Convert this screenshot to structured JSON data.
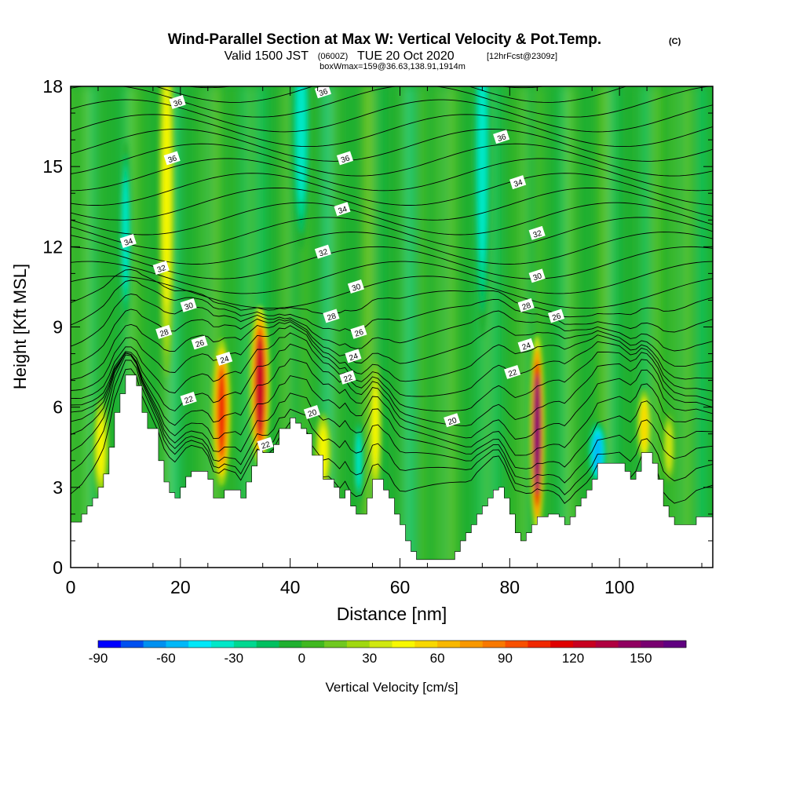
{
  "chart_data": {
    "type": "heatmap",
    "title": "Wind-Parallel Section at Max W: Vertical Velocity & Pot.Temp.",
    "title_mark": "(C)",
    "subtitle_parts": {
      "valid": "Valid 1500 JST",
      "utc": "(0600Z)",
      "date": "TUE 20 Oct 2020",
      "fcst": "[12hrFcst@2309z]"
    },
    "subtitle2": "boxWmax=159@36.63,138.91,1914m",
    "xlabel": "Distance [nm]",
    "ylabel": "Height [Kft MSL]",
    "xlim": [
      0,
      117
    ],
    "ylim": [
      0,
      18
    ],
    "x_ticks": [
      "0",
      "20",
      "40",
      "60",
      "80",
      "100"
    ],
    "y_ticks": [
      "0",
      "3",
      "6",
      "9",
      "12",
      "15",
      "18"
    ],
    "colorbar": {
      "label": "Vertical Velocity [cm/s]",
      "tick_labels": [
        "-90",
        "-60",
        "-30",
        "0",
        "30",
        "60",
        "90",
        "120",
        "150"
      ],
      "colors": [
        "#0000ff",
        "#0050f0",
        "#0090f0",
        "#00b8f8",
        "#00e8f8",
        "#00e8c8",
        "#00d890",
        "#00c060",
        "#20b030",
        "#40b820",
        "#70c820",
        "#a0d810",
        "#d0e810",
        "#f8f800",
        "#f8d800",
        "#f8b800",
        "#f89800",
        "#f87800",
        "#f85000",
        "#f02800",
        "#e00000",
        "#c80020",
        "#b00040",
        "#900060",
        "#780070",
        "#600080"
      ]
    },
    "terrain_profile": {
      "x_nm": [
        0,
        2,
        3,
        4,
        5,
        6,
        7,
        8,
        9,
        10,
        11,
        12,
        13,
        14,
        16,
        17,
        18,
        19,
        20,
        21,
        22,
        24,
        25,
        26,
        27,
        28,
        30,
        31,
        32,
        33,
        34,
        35,
        36,
        37,
        38,
        39,
        40,
        41,
        42,
        43,
        44,
        46,
        47,
        48,
        49,
        50,
        51,
        52,
        53,
        54,
        55,
        56,
        57,
        58,
        59,
        60,
        61,
        62,
        63,
        64,
        66,
        67,
        68,
        69,
        70,
        71,
        72,
        73,
        74,
        75,
        76,
        77,
        78,
        79,
        80,
        81,
        82,
        83,
        84,
        85,
        86,
        87,
        88,
        89,
        90,
        91,
        92,
        93,
        94,
        95,
        96,
        97,
        98,
        99,
        100,
        101,
        102,
        103,
        104,
        105,
        106,
        107,
        108,
        109,
        110,
        112,
        114,
        117
      ],
      "height_kft": [
        1.7,
        2.0,
        2.3,
        2.6,
        3.0,
        3.5,
        4.5,
        5.8,
        6.5,
        7.2,
        7.2,
        6.8,
        5.8,
        5.2,
        4.0,
        3.2,
        2.8,
        2.6,
        3.0,
        3.4,
        3.6,
        3.6,
        3.3,
        2.6,
        2.6,
        2.9,
        2.9,
        2.6,
        3.2,
        3.8,
        4.4,
        4.3,
        4.3,
        4.6,
        5.2,
        5.2,
        5.6,
        5.4,
        5.2,
        5.0,
        4.2,
        3.3,
        3.3,
        3.0,
        2.6,
        2.9,
        2.3,
        2.0,
        2.0,
        2.6,
        3.3,
        3.3,
        2.9,
        2.6,
        2.0,
        1.6,
        1.0,
        0.6,
        0.3,
        0.3,
        0.3,
        0.3,
        0.3,
        0.3,
        0.6,
        1.0,
        1.3,
        1.6,
        2.0,
        2.3,
        2.6,
        2.9,
        3.0,
        2.6,
        2.0,
        1.3,
        1.0,
        1.3,
        1.6,
        1.9,
        1.9,
        2.0,
        2.0,
        1.9,
        1.6,
        1.9,
        2.3,
        2.6,
        2.9,
        3.3,
        3.9,
        3.9,
        3.9,
        3.9,
        3.9,
        3.6,
        3.3,
        3.6,
        4.3,
        4.3,
        3.9,
        3.3,
        2.3,
        1.9,
        1.6,
        1.6,
        1.9,
        1.9,
        1.9,
        1.6
      ]
    },
    "updrafts": [
      {
        "x": 10.0,
        "y": 12.5,
        "value": -35,
        "w": 0.9,
        "h": 3.0
      },
      {
        "x": 5.5,
        "y": 4.5,
        "value": 40,
        "w": 1.2,
        "h": 1.6
      },
      {
        "x": 17.5,
        "y": 14.0,
        "value": 40,
        "w": 1.2,
        "h": 6.0
      },
      {
        "x": 27.5,
        "y": 5.8,
        "value": 100,
        "w": 1.4,
        "h": 2.4
      },
      {
        "x": 34.5,
        "y": 6.8,
        "value": 125,
        "w": 1.5,
        "h": 2.6
      },
      {
        "x": 42.0,
        "y": 16.5,
        "value": -35,
        "w": 1.5,
        "h": 4.0
      },
      {
        "x": 46.0,
        "y": 4.3,
        "value": 40,
        "w": 1.3,
        "h": 1.3
      },
      {
        "x": 52.5,
        "y": 4.0,
        "value": -40,
        "w": 0.8,
        "h": 1.4
      },
      {
        "x": 55.5,
        "y": 5.2,
        "value": 45,
        "w": 1.0,
        "h": 2.2
      },
      {
        "x": 75.0,
        "y": 15.5,
        "value": -40,
        "w": 1.4,
        "h": 6.0
      },
      {
        "x": 85.0,
        "y": 5.0,
        "value": 159,
        "w": 1.1,
        "h": 3.2
      },
      {
        "x": 96.0,
        "y": 4.3,
        "value": -60,
        "w": 1.4,
        "h": 1.0
      },
      {
        "x": 104.5,
        "y": 5.3,
        "value": 55,
        "w": 1.1,
        "h": 1.2
      },
      {
        "x": 109.0,
        "y": 4.5,
        "value": 35,
        "w": 1.0,
        "h": 1.2
      }
    ],
    "contour_labels": [
      {
        "text": "36",
        "x": 19.5,
        "y": 17.4
      },
      {
        "text": "36",
        "x": 46.0,
        "y": 17.8
      },
      {
        "text": "36",
        "x": 18.5,
        "y": 15.3
      },
      {
        "text": "36",
        "x": 50.0,
        "y": 15.3
      },
      {
        "text": "36",
        "x": 78.5,
        "y": 16.1
      },
      {
        "text": "34",
        "x": 49.5,
        "y": 13.4
      },
      {
        "text": "34",
        "x": 81.5,
        "y": 14.4
      },
      {
        "text": "34",
        "x": 10.5,
        "y": 12.2
      },
      {
        "text": "32",
        "x": 46.0,
        "y": 11.8
      },
      {
        "text": "32",
        "x": 16.5,
        "y": 11.2
      },
      {
        "text": "32",
        "x": 85.0,
        "y": 12.5
      },
      {
        "text": "30",
        "x": 52.0,
        "y": 10.5
      },
      {
        "text": "30",
        "x": 21.5,
        "y": 9.8
      },
      {
        "text": "30",
        "x": 85.0,
        "y": 10.9
      },
      {
        "text": "28",
        "x": 47.5,
        "y": 9.4
      },
      {
        "text": "28",
        "x": 17.0,
        "y": 8.8
      },
      {
        "text": "28",
        "x": 83.0,
        "y": 9.8
      },
      {
        "text": "26",
        "x": 52.5,
        "y": 8.8
      },
      {
        "text": "26",
        "x": 23.5,
        "y": 8.4
      },
      {
        "text": "26",
        "x": 88.5,
        "y": 9.4
      },
      {
        "text": "24",
        "x": 51.5,
        "y": 7.9
      },
      {
        "text": "24",
        "x": 28.0,
        "y": 7.8
      },
      {
        "text": "24",
        "x": 83.0,
        "y": 8.3
      },
      {
        "text": "22",
        "x": 50.5,
        "y": 7.1
      },
      {
        "text": "22",
        "x": 21.5,
        "y": 6.3
      },
      {
        "text": "22",
        "x": 80.5,
        "y": 7.3
      },
      {
        "text": "20",
        "x": 44.0,
        "y": 5.8
      },
      {
        "text": "20",
        "x": 69.5,
        "y": 5.5
      },
      {
        "text": "22",
        "x": 35.5,
        "y": 4.6
      }
    ],
    "grid": false
  }
}
